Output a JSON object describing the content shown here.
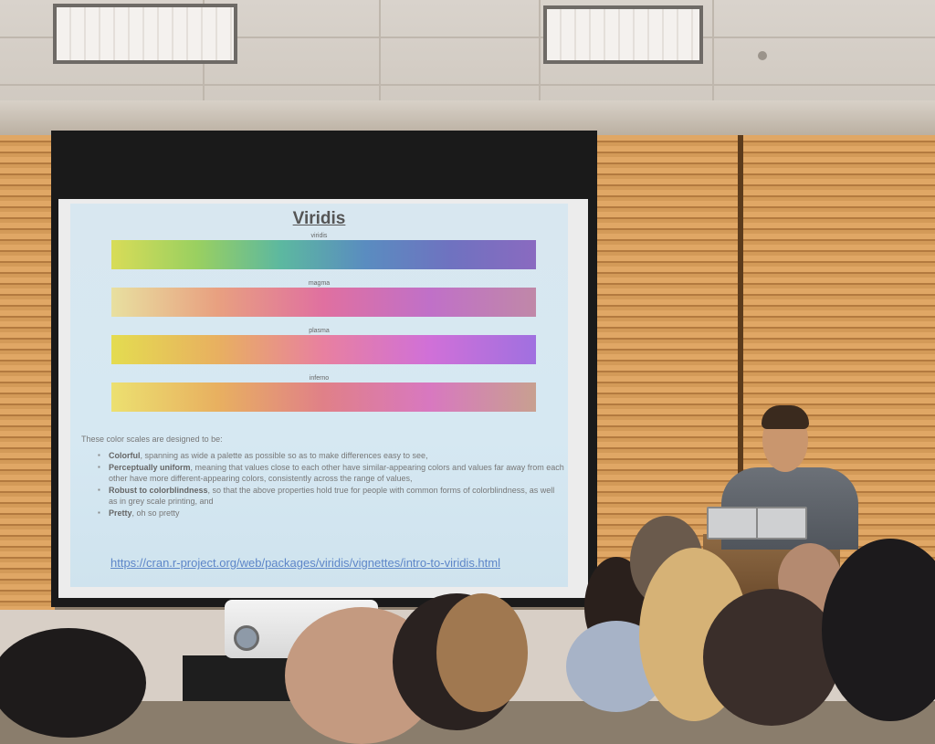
{
  "slide": {
    "title": "Viridis",
    "scales": [
      {
        "label": "viridis"
      },
      {
        "label": "magma"
      },
      {
        "label": "plasma"
      },
      {
        "label": "inferno"
      }
    ],
    "intro": "These color scales are designed to be:",
    "bullets": [
      {
        "term": "Colorful",
        "text": ", spanning as wide a palette as possible so as to make differences easy to see,"
      },
      {
        "term": "Perceptually uniform",
        "text": ", meaning that values close to each other have similar-appearing colors and values far away from each other have more different-appearing colors, consistently across the range of values,"
      },
      {
        "term": "Robust to colorblindness",
        "text": ", so that the above properties hold true for people with common forms of colorblindness, as well as in grey scale printing, and"
      },
      {
        "term": "Pretty",
        "text": ", oh so pretty"
      }
    ],
    "link": "https://cran.r-project.org/web/packages/viridis/vignettes/intro-to-viridis.html"
  },
  "colors": {
    "blinds": "#d39a58",
    "slide_background": "#d6e8f2",
    "link": "#5d86c8"
  }
}
